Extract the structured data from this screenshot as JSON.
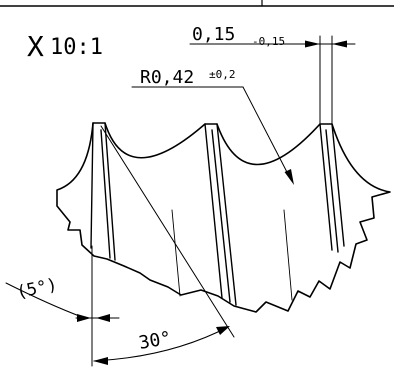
{
  "drawing": {
    "detail_marker": "X",
    "scale": "10:1",
    "pitch_value": "0,15",
    "pitch_tolerance": "-0,15",
    "radius_value": "R0,42",
    "radius_tolerance": "±0,2",
    "small_angle": "(5°)",
    "large_angle": "30°",
    "colors": {
      "ink": "#000000",
      "paper": "#ffffff"
    }
  }
}
